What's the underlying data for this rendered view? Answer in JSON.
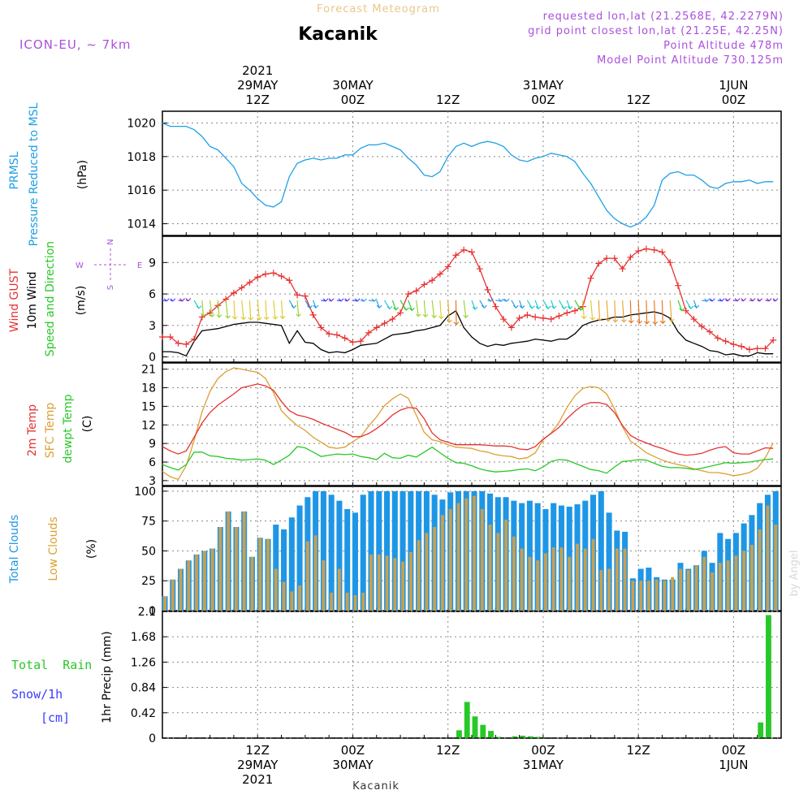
{
  "header": {
    "product": "Forecast Meteogram",
    "location": "Kacanik",
    "model": "ICON-EU, ~ 7km",
    "requested": "requested lon,lat (21.2568E, 42.2279N)",
    "grid_point": "grid point closest lon,lat (21.25E, 42.25N)",
    "point_altitude": "Point Altitude 478m",
    "model_altitude": "Model Point Altitude 730.125m"
  },
  "footer": {
    "location": "Kacanik",
    "credit": "by Angel"
  },
  "time_axis": {
    "top": [
      {
        "t": 12,
        "lines": [
          "2021",
          "29MAY",
          "12Z"
        ]
      },
      {
        "t": 24,
        "lines": [
          "30MAY",
          "00Z"
        ]
      },
      {
        "t": 36,
        "lines": [
          "12Z"
        ]
      },
      {
        "t": 48,
        "lines": [
          "31MAY",
          "00Z"
        ]
      },
      {
        "t": 60,
        "lines": [
          "12Z"
        ]
      },
      {
        "t": 72,
        "lines": [
          "1JUN",
          "00Z"
        ]
      }
    ],
    "bottom": [
      {
        "t": 12,
        "lines": [
          "12Z",
          "29MAY",
          "2021"
        ]
      },
      {
        "t": 24,
        "lines": [
          "00Z",
          "30MAY"
        ]
      },
      {
        "t": 36,
        "lines": [
          "12Z"
        ]
      },
      {
        "t": 48,
        "lines": [
          "00Z",
          "31MAY"
        ]
      },
      {
        "t": 60,
        "lines": [
          "12Z"
        ]
      },
      {
        "t": 72,
        "lines": [
          "00Z",
          "1JUN"
        ]
      }
    ]
  },
  "panel_labels": {
    "pressure": [
      "PRMSL",
      "Pressure Reduced to MSL",
      "(hPa)"
    ],
    "wind": [
      "Wind GUST",
      "10m Wind",
      "Speed and Direction",
      "(m/s)"
    ],
    "compass": [
      "N",
      "W",
      "E",
      "S"
    ],
    "temp": [
      "2m Temp",
      "SFC Temp",
      "dewpt Temp",
      "(C)"
    ],
    "clouds": [
      "Total Clouds",
      "Low Clouds",
      "(%)"
    ],
    "precip": [
      "Total  Rain",
      "Snow/1h",
      "[cm]",
      "1hr Precip (mm)"
    ]
  },
  "colors": {
    "pressure": "#1ea0e6",
    "gust": "#e63232",
    "wind": "#000000",
    "temp2m": "#e63232",
    "sfc": "#dca032",
    "dewpt": "#28c828",
    "total_clouds": "#1e96e6",
    "low_clouds": "#c8a050",
    "rain": "#28c828",
    "snow": "#3c3cff",
    "header_purple": "#aa50dc",
    "header_gold": "#e6c88c"
  },
  "chart_data": [
    {
      "type": "line",
      "name": "pressure",
      "ylabel": "(hPa)",
      "ylim": [
        1013.3,
        1020.7
      ],
      "yticks": [
        1014,
        1016,
        1018,
        1020
      ],
      "x": [
        0,
        1,
        2,
        3,
        4,
        5,
        6,
        7,
        8,
        9,
        10,
        11,
        12,
        13,
        14,
        15,
        16,
        17,
        18,
        19,
        20,
        21,
        22,
        23,
        24,
        25,
        26,
        27,
        28,
        29,
        30,
        31,
        32,
        33,
        34,
        35,
        36,
        37,
        38,
        39,
        40,
        41,
        42,
        43,
        44,
        45,
        46,
        47,
        48,
        49,
        50,
        51,
        52,
        53,
        54,
        55,
        56,
        57,
        58,
        59,
        60,
        61,
        62,
        63,
        64,
        65,
        66,
        67,
        68,
        69,
        70,
        71,
        72,
        73,
        74,
        75,
        76,
        77
      ],
      "values": [
        1020.0,
        1019.8,
        1019.8,
        1019.8,
        1019.6,
        1019.2,
        1018.6,
        1018.4,
        1017.9,
        1017.4,
        1016.4,
        1016.0,
        1015.5,
        1015.1,
        1015.0,
        1015.3,
        1016.8,
        1017.6,
        1017.8,
        1017.9,
        1017.8,
        1017.9,
        1017.9,
        1018.1,
        1018.1,
        1018.5,
        1018.7,
        1018.7,
        1018.8,
        1018.6,
        1018.4,
        1017.9,
        1017.5,
        1016.9,
        1016.8,
        1017.1,
        1018.0,
        1018.6,
        1018.8,
        1018.6,
        1018.8,
        1018.9,
        1018.8,
        1018.6,
        1018.1,
        1017.8,
        1017.7,
        1017.9,
        1018.0,
        1018.2,
        1018.1,
        1018.0,
        1017.7,
        1017.0,
        1016.4,
        1015.6,
        1014.8,
        1014.3,
        1014.0,
        1013.8,
        1014.0,
        1014.4,
        1015.1,
        1016.6,
        1017.0,
        1017.1,
        1016.9,
        1016.9,
        1016.6,
        1016.2,
        1016.1,
        1016.4,
        1016.5,
        1016.5,
        1016.6,
        1016.4,
        1016.5,
        1016.5
      ]
    },
    {
      "type": "line",
      "name": "wind",
      "ylabel": "(m/s)",
      "ylim": [
        -0.5,
        11.5
      ],
      "yticks": [
        0,
        3,
        6,
        9
      ],
      "x": [
        0,
        1,
        2,
        3,
        4,
        5,
        6,
        7,
        8,
        9,
        10,
        11,
        12,
        13,
        14,
        15,
        16,
        17,
        18,
        19,
        20,
        21,
        22,
        23,
        24,
        25,
        26,
        27,
        28,
        29,
        30,
        31,
        32,
        33,
        34,
        35,
        36,
        37,
        38,
        39,
        40,
        41,
        42,
        43,
        44,
        45,
        46,
        47,
        48,
        49,
        50,
        51,
        52,
        53,
        54,
        55,
        56,
        57,
        58,
        59,
        60,
        61,
        62,
        63,
        64,
        65,
        66,
        67,
        68,
        69,
        70,
        71,
        72,
        73,
        74,
        75,
        76,
        77
      ],
      "gust": [
        1.9,
        1.9,
        1.3,
        1.2,
        1.7,
        3.8,
        4.2,
        4.9,
        5.5,
        6.1,
        6.6,
        7.1,
        7.6,
        7.9,
        8.0,
        7.7,
        7.3,
        5.9,
        5.8,
        4.0,
        2.8,
        2.2,
        2.1,
        1.8,
        1.4,
        1.5,
        2.3,
        2.8,
        3.2,
        3.6,
        4.2,
        6.0,
        6.3,
        6.9,
        7.3,
        7.9,
        8.6,
        9.7,
        10.2,
        10.0,
        8.4,
        6.4,
        4.8,
        3.6,
        2.8,
        3.7,
        4.0,
        3.8,
        3.7,
        3.6,
        3.9,
        4.2,
        4.4,
        4.8,
        7.5,
        8.9,
        9.4,
        9.4,
        8.4,
        9.5,
        10.1,
        10.3,
        10.2,
        10.0,
        9.0,
        6.8,
        4.4,
        3.6,
        2.9,
        2.4,
        1.8,
        1.5,
        1.2,
        1.0,
        0.7,
        0.8,
        0.8,
        1.6
      ],
      "speed": [
        0.5,
        0.5,
        0.4,
        0.1,
        1.5,
        2.5,
        2.6,
        2.7,
        2.9,
        3.1,
        3.2,
        3.3,
        3.3,
        3.2,
        3.1,
        3.0,
        1.3,
        2.5,
        1.4,
        1.3,
        0.7,
        0.4,
        0.5,
        0.4,
        0.7,
        1.1,
        1.2,
        1.3,
        1.7,
        2.1,
        2.2,
        2.3,
        2.5,
        2.6,
        2.8,
        3.0,
        3.9,
        4.4,
        2.8,
        1.9,
        1.3,
        1.0,
        1.2,
        1.1,
        1.3,
        1.4,
        1.5,
        1.7,
        1.6,
        1.5,
        1.7,
        1.7,
        2.2,
        3.0,
        3.3,
        3.5,
        3.6,
        3.8,
        3.8,
        4.0,
        4.1,
        4.2,
        4.3,
        4.1,
        3.7,
        2.4,
        1.6,
        1.3,
        1.0,
        0.6,
        0.5,
        0.2,
        0.3,
        0.1,
        0.1,
        0.4,
        0.3,
        0.3
      ]
    },
    {
      "type": "line",
      "name": "temperature",
      "ylabel": "(C)",
      "ylim": [
        2.2,
        22.0
      ],
      "yticks": [
        3,
        6,
        9,
        12,
        15,
        18,
        21
      ],
      "x": [
        0,
        1,
        2,
        3,
        4,
        5,
        6,
        7,
        8,
        9,
        10,
        11,
        12,
        13,
        14,
        15,
        16,
        17,
        18,
        19,
        20,
        21,
        22,
        23,
        24,
        25,
        26,
        27,
        28,
        29,
        30,
        31,
        32,
        33,
        34,
        35,
        36,
        37,
        38,
        39,
        40,
        41,
        42,
        43,
        44,
        45,
        46,
        47,
        48,
        49,
        50,
        51,
        52,
        53,
        54,
        55,
        56,
        57,
        58,
        59,
        60,
        61,
        62,
        63,
        64,
        65,
        66,
        67,
        68,
        69,
        70,
        71,
        72,
        73,
        74,
        75,
        76,
        77
      ],
      "temp2m": [
        8.5,
        7.8,
        7.3,
        7.8,
        10.0,
        12.3,
        14.0,
        15.2,
        16.1,
        17.0,
        18.0,
        18.3,
        18.6,
        18.3,
        17.6,
        15.8,
        14.3,
        13.6,
        13.3,
        12.9,
        12.3,
        11.8,
        11.3,
        10.8,
        10.1,
        10.1,
        10.6,
        11.4,
        12.4,
        13.6,
        14.4,
        14.8,
        14.7,
        13.0,
        10.7,
        9.6,
        9.2,
        8.8,
        8.8,
        8.8,
        8.8,
        8.7,
        8.6,
        8.6,
        8.5,
        8.1,
        8.0,
        8.5,
        9.7,
        10.6,
        11.6,
        13.0,
        14.2,
        15.2,
        15.6,
        15.6,
        15.3,
        14.0,
        11.9,
        10.3,
        9.6,
        9.1,
        8.6,
        8.2,
        7.7,
        7.3,
        7.1,
        7.2,
        7.4,
        7.9,
        8.3,
        8.5,
        7.5,
        7.3,
        7.3,
        7.8,
        8.3,
        8.2
      ],
      "sfc": [
        4.5,
        3.6,
        3.2,
        5.4,
        9.5,
        14.1,
        17.4,
        19.5,
        20.6,
        21.2,
        21.0,
        20.7,
        20.5,
        19.5,
        17.2,
        14.3,
        13.0,
        11.9,
        11.1,
        10.0,
        9.2,
        8.4,
        8.2,
        8.4,
        9.3,
        10.1,
        11.8,
        13.3,
        15.1,
        16.2,
        17.0,
        16.3,
        13.6,
        10.8,
        9.6,
        9.3,
        8.8,
        8.4,
        8.3,
        8.2,
        7.8,
        7.6,
        7.2,
        7.0,
        6.9,
        6.5,
        6.7,
        7.5,
        9.6,
        10.7,
        12.4,
        14.8,
        16.7,
        17.9,
        18.2,
        18.0,
        17.0,
        14.6,
        11.7,
        9.4,
        8.5,
        7.5,
        6.9,
        6.3,
        5.9,
        5.6,
        5.3,
        4.9,
        4.6,
        4.3,
        4.3,
        4.1,
        3.8,
        4.0,
        4.3,
        5.0,
        6.7,
        9.1
      ],
      "dewpt": [
        5.6,
        5.1,
        4.7,
        5.6,
        7.6,
        7.6,
        7.0,
        6.9,
        6.6,
        6.5,
        6.3,
        6.4,
        6.5,
        6.3,
        5.6,
        6.3,
        7.1,
        8.5,
        8.3,
        7.6,
        6.9,
        7.1,
        7.3,
        7.2,
        7.3,
        6.9,
        6.7,
        6.4,
        7.4,
        6.7,
        6.6,
        7.1,
        6.8,
        7.6,
        8.4,
        7.5,
        6.6,
        5.9,
        5.8,
        5.4,
        4.9,
        4.6,
        4.4,
        4.5,
        4.6,
        4.8,
        4.9,
        4.6,
        5.2,
        6.1,
        6.4,
        6.3,
        5.8,
        5.3,
        4.8,
        4.6,
        4.2,
        5.2,
        6.1,
        6.2,
        6.4,
        6.3,
        5.8,
        5.3,
        5.1,
        5.1,
        5.0,
        4.8,
        5.0,
        5.3,
        5.6,
        5.9,
        5.8,
        5.9,
        6.0,
        6.2,
        6.4,
        6.5
      ]
    },
    {
      "type": "bar",
      "name": "clouds",
      "ylabel": "(%)",
      "ylim": [
        0,
        104
      ],
      "yticks": [
        0,
        25,
        50,
        75,
        100
      ],
      "x": [
        0,
        1,
        2,
        3,
        4,
        5,
        6,
        7,
        8,
        9,
        10,
        11,
        12,
        13,
        14,
        15,
        16,
        17,
        18,
        19,
        20,
        21,
        22,
        23,
        24,
        25,
        26,
        27,
        28,
        29,
        30,
        31,
        32,
        33,
        34,
        35,
        36,
        37,
        38,
        39,
        40,
        41,
        42,
        43,
        44,
        45,
        46,
        47,
        48,
        49,
        50,
        51,
        52,
        53,
        54,
        55,
        56,
        57,
        58,
        59,
        60,
        61,
        62,
        63,
        64,
        65,
        66,
        67,
        68,
        69,
        70,
        71,
        72,
        73,
        74,
        75,
        76,
        77
      ],
      "total": [
        12,
        26,
        35,
        42,
        47,
        50,
        52,
        70,
        83,
        70,
        83,
        45,
        61,
        60,
        72,
        68,
        78,
        88,
        95,
        100,
        100,
        97,
        92,
        85,
        82,
        97,
        100,
        100,
        100,
        100,
        100,
        100,
        100,
        100,
        97,
        93,
        99,
        100,
        100,
        100,
        100,
        98,
        95,
        95,
        92,
        90,
        92,
        90,
        85,
        90,
        88,
        87,
        89,
        92,
        97,
        100,
        82,
        67,
        66,
        27,
        35,
        36,
        28,
        26,
        26,
        40,
        35,
        38,
        50,
        40,
        65,
        60,
        65,
        73,
        80,
        90,
        97,
        100
      ],
      "low": [
        12,
        26,
        35,
        42,
        47,
        50,
        52,
        70,
        83,
        70,
        83,
        45,
        61,
        60,
        35,
        24,
        16,
        21,
        58,
        63,
        42,
        15,
        35,
        15,
        13,
        15,
        47,
        47,
        46,
        44,
        41,
        49,
        59,
        65,
        70,
        80,
        85,
        90,
        94,
        96,
        85,
        72,
        65,
        76,
        62,
        52,
        45,
        42,
        48,
        53,
        53,
        45,
        56,
        52,
        60,
        34,
        35,
        52,
        52,
        25,
        25,
        25,
        26,
        25,
        28,
        35,
        34,
        38,
        45,
        32,
        40,
        42,
        46,
        50,
        55,
        68,
        88,
        72
      ]
    },
    {
      "type": "bar",
      "name": "precipitation",
      "ylabel": "1hr Precip (mm)",
      "ylim": [
        0,
        2.1
      ],
      "yticks": [
        0,
        0.42,
        0.84,
        1.26,
        1.68,
        2.1
      ],
      "x": [
        0,
        1,
        2,
        3,
        4,
        5,
        6,
        7,
        8,
        9,
        10,
        11,
        12,
        13,
        14,
        15,
        16,
        17,
        18,
        19,
        20,
        21,
        22,
        23,
        24,
        25,
        26,
        27,
        28,
        29,
        30,
        31,
        32,
        33,
        34,
        35,
        36,
        37,
        38,
        39,
        40,
        41,
        42,
        43,
        44,
        45,
        46,
        47,
        48,
        49,
        50,
        51,
        52,
        53,
        54,
        55,
        56,
        57,
        58,
        59,
        60,
        61,
        62,
        63,
        64,
        65,
        66,
        67,
        68,
        69,
        70,
        71,
        72,
        73,
        74,
        75,
        76,
        77
      ],
      "rain": [
        0,
        0,
        0,
        0,
        0,
        0,
        0,
        0,
        0,
        0,
        0,
        0,
        0,
        0,
        0,
        0,
        0,
        0,
        0,
        0,
        0,
        0,
        0,
        0,
        0,
        0,
        0,
        0,
        0,
        0,
        0,
        0,
        0,
        0,
        0,
        0,
        0,
        0.13,
        0.6,
        0.36,
        0.22,
        0.12,
        0.02,
        0.0,
        0.03,
        0.04,
        0.03,
        0.02,
        0,
        0,
        0,
        0,
        0,
        0,
        0,
        0,
        0,
        0,
        0,
        0,
        0,
        0,
        0,
        0,
        0,
        0,
        0,
        0,
        0,
        0,
        0,
        0,
        0,
        0,
        0,
        0.26,
        2.04,
        0
      ]
    }
  ]
}
